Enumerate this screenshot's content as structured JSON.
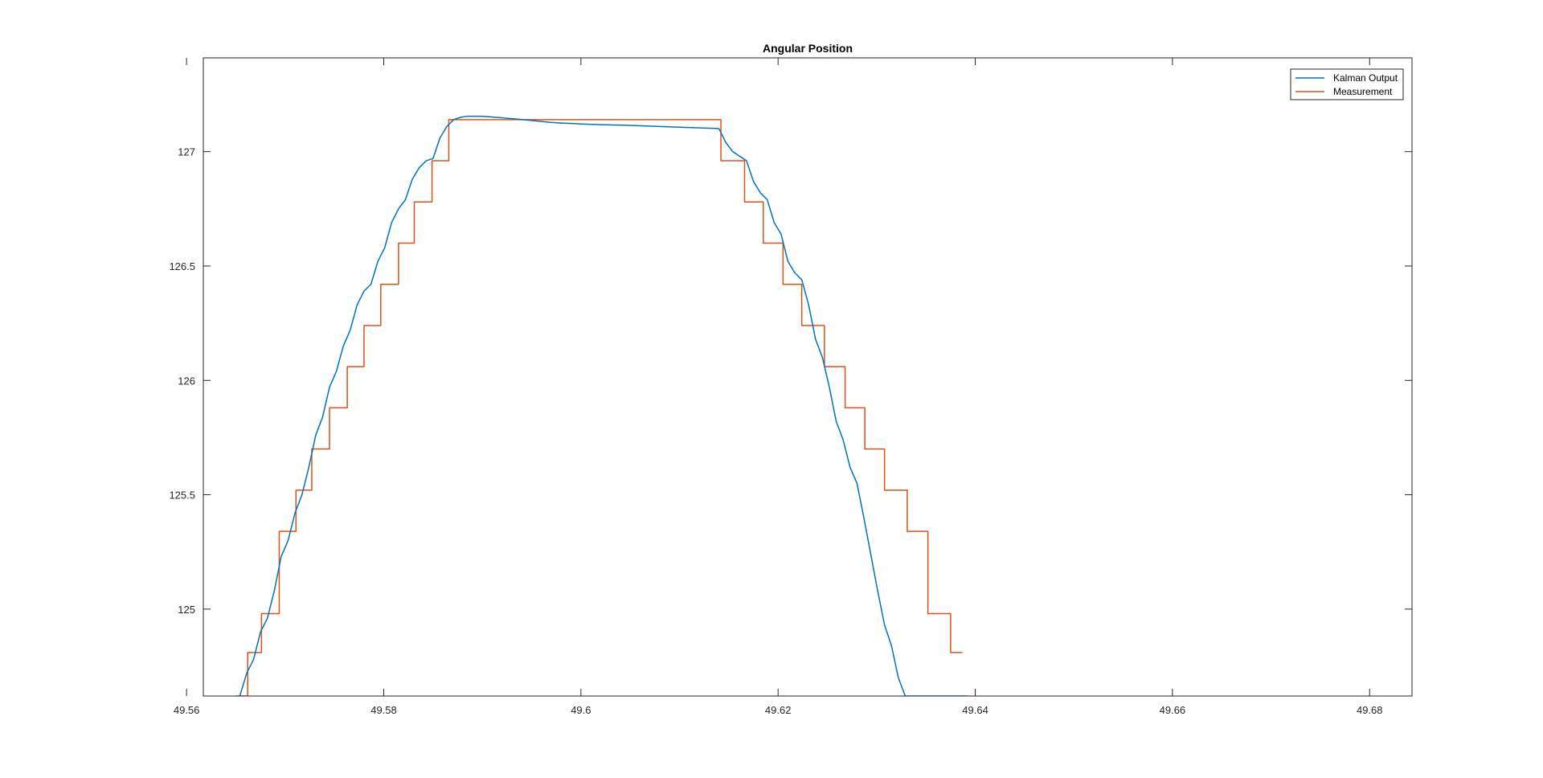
{
  "figure": {
    "background": "#ffffff"
  },
  "chart_data": {
    "type": "line",
    "title": "Angular Position",
    "xlabel": "",
    "ylabel": "",
    "xlim": [
      49.5617,
      49.6843
    ],
    "ylim": [
      124.62,
      127.41
    ],
    "xticks": [
      49.56,
      49.58,
      49.6,
      49.62,
      49.64,
      49.66,
      49.68
    ],
    "xtick_labels": [
      "49.56",
      "49.58",
      "49.6",
      "49.62",
      "49.64",
      "49.66",
      "49.68"
    ],
    "yticks": [
      125,
      125.5,
      126,
      126.5,
      127
    ],
    "ytick_labels": [
      "125",
      "125.5",
      "126",
      "126.5",
      "127"
    ],
    "grid": false,
    "legend": {
      "position": "top-right",
      "entries": [
        "Kalman Output",
        "Measurement"
      ]
    },
    "series": [
      {
        "name": "Kalman Output",
        "color": "#0072BD",
        "x": [
          49.5654,
          49.5661,
          49.5668,
          49.5675,
          49.5682,
          49.5689,
          49.5696,
          49.5703,
          49.571,
          49.5717,
          49.5724,
          49.5731,
          49.5738,
          49.5745,
          49.5752,
          49.5759,
          49.5766,
          49.5773,
          49.578,
          49.5787,
          49.5794,
          49.5801,
          49.5808,
          49.5815,
          49.5822,
          49.5829,
          49.5836,
          49.5843,
          49.585,
          49.5857,
          49.5864,
          49.5871,
          49.5878,
          49.5885,
          49.5892,
          49.5899,
          49.5906,
          49.5913,
          49.592,
          49.5927,
          49.5934,
          49.5941,
          49.5948,
          49.5955,
          49.5962,
          49.5969,
          49.598,
          49.599,
          49.6,
          49.602,
          49.604,
          49.606,
          49.608,
          49.61,
          49.612,
          49.614,
          49.6147,
          49.6154,
          49.6161,
          49.6168,
          49.6175,
          49.6182,
          49.6189,
          49.6196,
          49.6203,
          49.621,
          49.6217,
          49.6224,
          49.6231,
          49.6238,
          49.6245,
          49.6252,
          49.6259,
          49.6266,
          49.6273,
          49.628,
          49.6287,
          49.6294,
          49.6301,
          49.6308,
          49.6315,
          49.6322,
          49.6329,
          49.6336,
          49.6343,
          49.635,
          49.6357,
          49.6364,
          49.6371,
          49.6378,
          49.6385,
          49.6392
        ],
        "y": [
          124.62,
          124.72,
          124.78,
          124.9,
          124.96,
          125.08,
          125.23,
          125.3,
          125.42,
          125.5,
          125.62,
          125.76,
          125.84,
          125.97,
          126.04,
          126.15,
          126.22,
          126.33,
          126.39,
          126.42,
          126.52,
          126.58,
          126.69,
          126.75,
          126.79,
          126.88,
          126.93,
          126.96,
          126.97,
          127.06,
          127.11,
          127.14,
          127.15,
          127.155,
          127.155,
          127.155,
          127.153,
          127.15,
          127.148,
          127.145,
          127.143,
          127.14,
          127.137,
          127.134,
          127.131,
          127.128,
          127.125,
          127.123,
          127.121,
          127.118,
          127.116,
          127.113,
          127.11,
          127.107,
          127.104,
          127.101,
          127.04,
          127.0,
          126.98,
          126.96,
          126.87,
          126.82,
          126.79,
          126.69,
          126.64,
          126.52,
          126.47,
          126.44,
          126.33,
          126.18,
          126.1,
          125.97,
          125.82,
          125.74,
          125.62,
          125.55,
          125.4,
          125.24,
          125.08,
          124.93,
          124.84,
          124.7,
          124.62,
          124.62,
          124.62,
          124.62,
          124.62,
          124.62,
          124.62,
          124.62,
          124.62,
          124.62
        ]
      },
      {
        "name": "Measurement",
        "color": "#D95319",
        "x": [
          49.565,
          49.5662,
          49.5662,
          49.5676,
          49.5676,
          49.5694,
          49.5694,
          49.5711,
          49.5711,
          49.5727,
          49.5727,
          49.5745,
          49.5745,
          49.5763,
          49.5763,
          49.578,
          49.578,
          49.5797,
          49.5797,
          49.5815,
          49.5815,
          49.5831,
          49.5831,
          49.5849,
          49.5849,
          49.5866,
          49.5866,
          49.5883,
          49.5883,
          49.5901,
          49.5901,
          49.5935,
          49.5935,
          49.6142,
          49.6142,
          49.6166,
          49.6166,
          49.6185,
          49.6185,
          49.6205,
          49.6205,
          49.6224,
          49.6224,
          49.6247,
          49.6247,
          49.6268,
          49.6268,
          49.6288,
          49.6288,
          49.6308,
          49.6308,
          49.6331,
          49.6331,
          49.6352,
          49.6352,
          49.6375,
          49.6375,
          49.6387
        ],
        "y": [
          124.62,
          124.62,
          124.81,
          124.81,
          124.98,
          124.98,
          125.34,
          125.34,
          125.52,
          125.52,
          125.7,
          125.7,
          125.88,
          125.88,
          126.06,
          126.06,
          126.24,
          126.24,
          126.42,
          126.42,
          126.6,
          126.6,
          126.78,
          126.78,
          126.96,
          126.96,
          127.14,
          127.14,
          127.14,
          127.14,
          127.14,
          127.14,
          127.14,
          127.14,
          126.96,
          126.96,
          126.78,
          126.78,
          126.6,
          126.6,
          126.42,
          126.42,
          126.24,
          126.24,
          126.06,
          126.06,
          125.88,
          125.88,
          125.7,
          125.7,
          125.52,
          125.52,
          125.34,
          125.34,
          124.98,
          124.98,
          124.81,
          124.81
        ]
      }
    ]
  }
}
